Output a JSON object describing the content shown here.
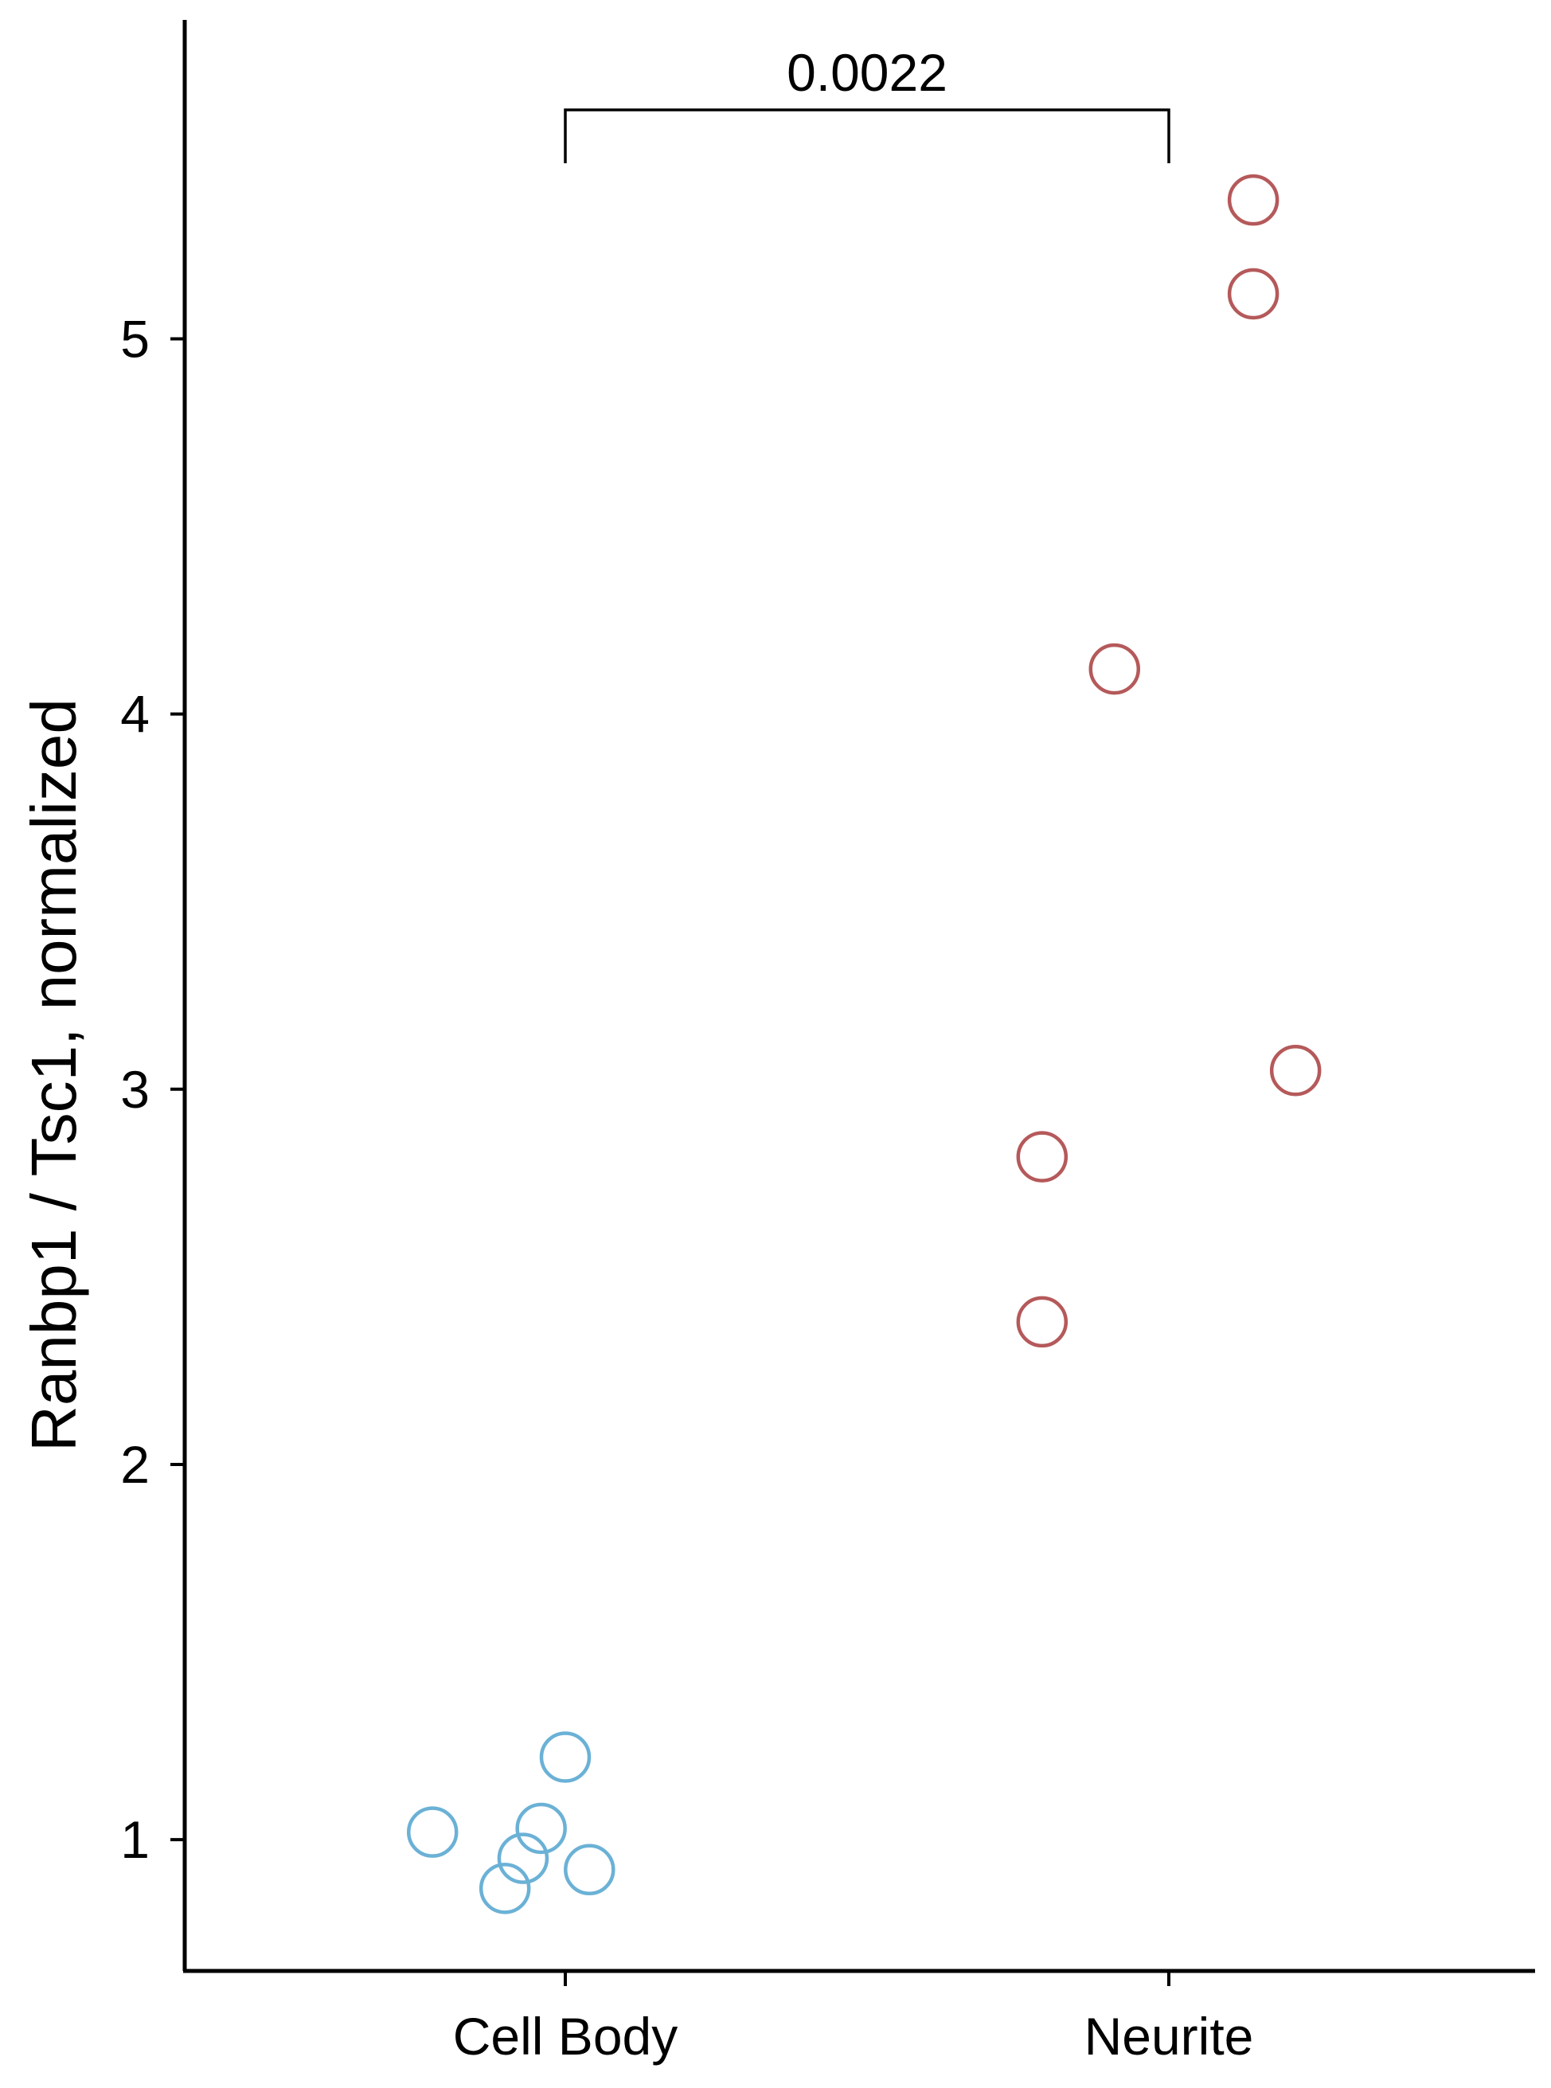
{
  "chart_data": {
    "type": "scatter",
    "title": "",
    "xlabel": "",
    "ylabel": "Ranbp1 / Tsc1, normalized",
    "categories": [
      "Cell Body",
      "Neurite"
    ],
    "ylim": [
      0.65,
      5.85
    ],
    "yticks": [
      1,
      2,
      3,
      4,
      5
    ],
    "grid": false,
    "legend": "none",
    "series": [
      {
        "category": "Cell Body",
        "color": "#6bb1d6",
        "points": [
          {
            "jitter": -0.22,
            "y": 1.02
          },
          {
            "jitter": -0.1,
            "y": 0.87
          },
          {
            "jitter": -0.07,
            "y": 0.95
          },
          {
            "jitter": -0.04,
            "y": 1.03
          },
          {
            "jitter": 0.0,
            "y": 1.22
          },
          {
            "jitter": 0.04,
            "y": 0.92
          }
        ]
      },
      {
        "category": "Neurite",
        "color": "#b5595a",
        "points": [
          {
            "jitter": -0.21,
            "y": 2.38
          },
          {
            "jitter": -0.21,
            "y": 2.82
          },
          {
            "jitter": -0.09,
            "y": 4.12
          },
          {
            "jitter": 0.14,
            "y": 5.37
          },
          {
            "jitter": 0.14,
            "y": 5.12
          },
          {
            "jitter": 0.21,
            "y": 3.05
          }
        ]
      }
    ],
    "annotations": [
      {
        "type": "significance-bracket",
        "from": "Cell Body",
        "to": "Neurite",
        "label": "0.0022"
      }
    ]
  }
}
